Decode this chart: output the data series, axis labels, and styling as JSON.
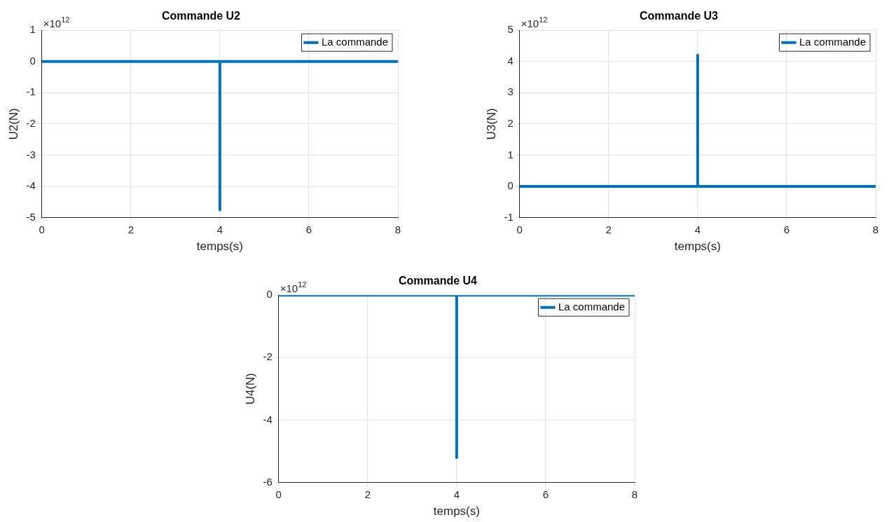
{
  "chart_data": [
    {
      "type": "line",
      "title": "Commande U2",
      "xlabel": "temps(s)",
      "ylabel": "U2(N)",
      "x": [
        0,
        4,
        4,
        4,
        8
      ],
      "series": [
        {
          "name": "La commande",
          "color": "#0072bd",
          "values": [
            0,
            0,
            -4.75,
            0,
            0
          ]
        }
      ],
      "xlim": [
        0,
        8
      ],
      "ylim": [
        -5,
        1
      ],
      "xticks": [
        0,
        2,
        4,
        6,
        8
      ],
      "yticks": [
        -5,
        -4,
        -3,
        -2,
        -1,
        0,
        1
      ],
      "grid": true,
      "legend": "top right",
      "annotations": [
        "×10$^{12}$"
      ]
    },
    {
      "type": "line",
      "title": "Commande U3",
      "xlabel": "temps(s)",
      "ylabel": "U3(N)",
      "x": [
        0,
        4,
        4,
        4,
        8
      ],
      "series": [
        {
          "name": "La commande",
          "color": "#0072bd",
          "values": [
            0,
            0,
            4.2,
            0,
            0
          ]
        }
      ],
      "xlim": [
        0,
        8
      ],
      "ylim": [
        -1,
        5
      ],
      "xticks": [
        0,
        2,
        4,
        6,
        8
      ],
      "yticks": [
        -1,
        0,
        1,
        2,
        3,
        4,
        5
      ],
      "grid": true,
      "legend": "top right",
      "annotations": [
        "×10$^{12}$"
      ]
    },
    {
      "type": "line",
      "title": "Commande U4",
      "xlabel": "temps(s)",
      "ylabel": "U4(N)",
      "x": [
        0,
        4,
        4,
        4,
        8
      ],
      "series": [
        {
          "name": "La commande",
          "color": "#0072bd",
          "values": [
            0,
            0,
            -5.2,
            0,
            0
          ]
        }
      ],
      "xlim": [
        0,
        8
      ],
      "ylim": [
        -6,
        0
      ],
      "xticks": [
        0,
        2,
        4,
        6,
        8
      ],
      "yticks": [
        -6,
        -4,
        -2,
        0
      ],
      "grid": true,
      "legend": "top right",
      "annotations": [
        "×10$^{12}$"
      ]
    }
  ]
}
